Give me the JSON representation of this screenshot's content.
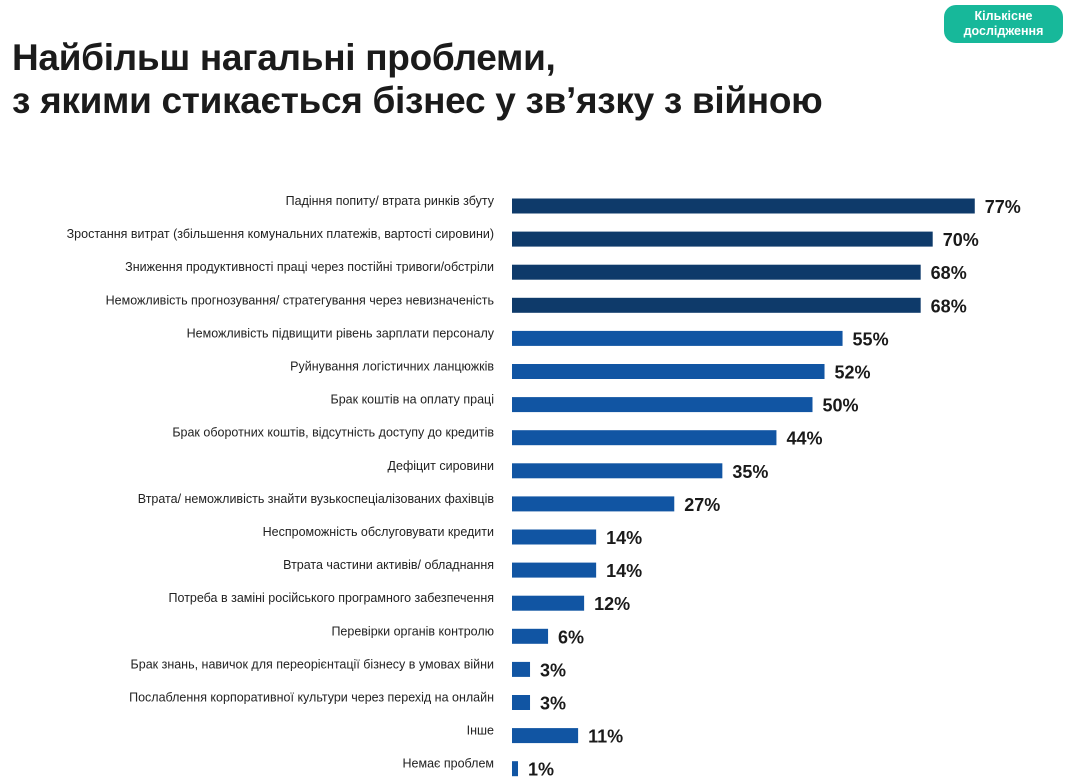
{
  "title": {
    "line1": "Найбільш нагальні проблеми,",
    "line2": "з якими стикається бізнес у зв’язку з війною"
  },
  "badge": {
    "line1": "Кількісне",
    "line2": "дослідження"
  },
  "colors": {
    "bar_dark": "#0e3a6a",
    "bar_light": "#1155a3",
    "badge": "#17b89a"
  },
  "chart_data": {
    "type": "bar",
    "orientation": "horizontal",
    "categories": [
      "Падіння попиту/ втрата ринків збуту",
      "Зростання витрат (збільшення комунальних платежів, вартості сировини)",
      "Зниження продуктивності праці через постійні тривоги/обстріли",
      "Неможливість прогнозування/ стратегування через невизначеність",
      "Неможливість підвищити рівень зарплати персоналу",
      "Руйнування логістичних ланцюжків",
      "Брак коштів на оплату праці",
      "Брак оборотних коштів, відсутність доступу до кредитів",
      "Дефіцит сировини",
      "Втрата/ неможливість знайти вузькоспеціалізованих фахівців",
      "Неспроможність обслуговувати кредити",
      "Втрата частини активів/ обладнання",
      "Потреба в заміні російського програмного забезпечення",
      "Перевірки органів контролю",
      "Брак знань, навичок для переорієнтації бізнесу в умовах війни",
      "Послаблення корпоративної культури через перехід на онлайн",
      "Інше",
      "Немає проблем"
    ],
    "values": [
      77,
      70,
      68,
      68,
      55,
      52,
      50,
      44,
      35,
      27,
      14,
      14,
      12,
      6,
      3,
      3,
      11,
      1
    ],
    "value_labels": [
      "77%",
      "70%",
      "68%",
      "68%",
      "55%",
      "52%",
      "50%",
      "44%",
      "35%",
      "27%",
      "14%",
      "14%",
      "12%",
      "6%",
      "3%",
      "3%",
      "11%",
      "1%"
    ],
    "highlight_top_n": 4,
    "title": "Найбільш нагальні проблеми, з якими стикається бізнес у зв’язку з війною",
    "xlabel": "",
    "ylabel": "",
    "xlim": [
      0,
      77
    ],
    "grid": false,
    "legend": "none"
  }
}
